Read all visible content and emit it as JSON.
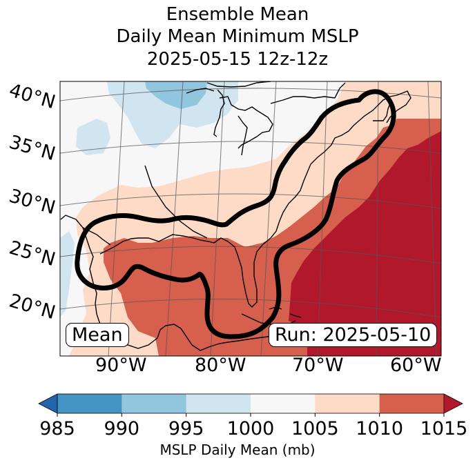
{
  "title": {
    "line1": "Ensemble Mean",
    "line2": "Daily Mean Minimum MSLP",
    "line3": "2025-05-15 12z-12z"
  },
  "map": {
    "region": "Eastern United States and western Atlantic",
    "lat_labels": [
      "40°N",
      "35°N",
      "30°N",
      "25°N",
      "20°N"
    ],
    "lon_labels": [
      "90°W",
      "80°W",
      "70°W",
      "60°W"
    ],
    "mean_label": "Mean",
    "run_label": "Run: 2025-05-10",
    "field_levels": [
      {
        "range": "990-995",
        "color": "#92c5de"
      },
      {
        "range": "995-1000",
        "color": "#d1e5f0"
      },
      {
        "range": "1000-1005",
        "color": "#f7f7f7"
      },
      {
        "range": "1005-1010",
        "color": "#fddbc7"
      },
      {
        "range": "1010-1015",
        "color": "#d6604d"
      },
      {
        "range": ">1015",
        "color": "#b2182b"
      }
    ]
  },
  "colorbar": {
    "ticks": [
      "985",
      "990",
      "995",
      "1000",
      "1005",
      "1010",
      "1015"
    ],
    "colors": [
      "#4393c3",
      "#92c5de",
      "#d1e5f0",
      "#f7f7f7",
      "#fddbc7",
      "#d6604d"
    ],
    "under_color": "#2166ac",
    "over_color": "#b2182b",
    "label": "MSLP Daily Mean (mb)"
  }
}
